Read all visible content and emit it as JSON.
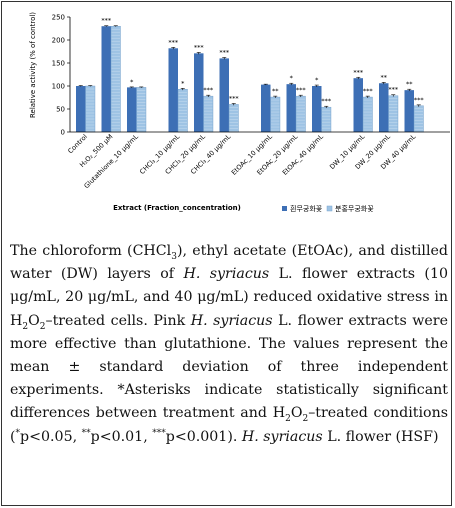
{
  "chart_data": {
    "type": "bar",
    "ylabel": "Relative activity (% of control)",
    "xlabel": "Extract (Fraction_concentration)",
    "ylim": [
      0,
      250
    ],
    "yticks": [
      0,
      50,
      100,
      150,
      200,
      250
    ],
    "grid": false,
    "legend": "bottom-right",
    "categories": [
      {
        "label": "Control",
        "group": 0
      },
      {
        "label": "H₂O₂_500 μM",
        "group": 0
      },
      {
        "label": "Glutathione_10 μg/mL",
        "group": 0
      },
      {
        "label": "CHCl₃_10 μg/mL",
        "group": 1
      },
      {
        "label": "CHCl₃_20 μg/mL",
        "group": 1
      },
      {
        "label": "CHCl₃_40 μg/mL",
        "group": 1
      },
      {
        "label": "EtOAc_10 μg/mL",
        "group": 2
      },
      {
        "label": "EtOAc_20 μg/mL",
        "group": 2
      },
      {
        "label": "EtOAc_40 μg/mL",
        "group": 2
      },
      {
        "label": "DW_10 μg/mL",
        "group": 3
      },
      {
        "label": "DW_20 μg/mL",
        "group": 3
      },
      {
        "label": "DW_40 μg/mL",
        "group": 3
      }
    ],
    "series": [
      {
        "name": "흰무궁화꽃",
        "values": [
          100,
          230,
          97,
          182,
          171,
          160,
          103,
          104,
          100,
          117,
          106,
          91
        ],
        "errors": [
          1,
          1,
          1,
          2,
          2,
          2,
          1,
          2,
          2,
          2,
          2,
          2
        ],
        "annotations": [
          "",
          "***",
          "*",
          "***",
          "***",
          "***",
          "",
          "*",
          "*",
          "***",
          "**",
          "**"
        ],
        "color": "#3d6fb5"
      },
      {
        "name": "분홍무궁화꽃",
        "values": [
          100,
          230,
          97,
          93,
          78,
          60,
          76,
          78,
          54,
          76,
          79,
          57
        ],
        "errors": [
          1,
          1,
          1,
          2,
          2,
          2,
          2,
          2,
          2,
          2,
          2,
          2
        ],
        "annotations": [
          "",
          "",
          "",
          "*",
          "***",
          "***",
          "**",
          "***",
          "***",
          "***",
          "***",
          "***"
        ],
        "color": "#9ec3e4"
      }
    ]
  },
  "caption": {
    "p1": "The chloroform (CHCl",
    "p1_sub": "3",
    "p2": "), ethyl acetate (EtOAc), and distilled water (DW) layers of ",
    "p3_i": "H. syriacus",
    "p4": " L. flower extracts (10 μg/mL, 20 μg/mL, and 40 μg/mL) reduced oxidative stress in H",
    "p4_sub1": "2",
    "p5": "O",
    "p5_sub2": "2",
    "p6": "–treated cells. Pink ",
    "p7_i": "H. syriacus",
    "p8": " L. flower extracts were more effective than glutathione. The values represent the mean ± standard deviation of three independent experiments. *Asterisks indicate statistically significant differences between treatment and H",
    "p8_sub1": "2",
    "p9": "O",
    "p9_sub2": "2",
    "p10": "–treated conditions (",
    "p10_sup1": "*",
    "p11": "p<0.05, ",
    "p11_sup2": "**",
    "p12": "p<0.01, ",
    "p12_sup3": "***",
    "p13": "p<0.001). ",
    "p14_i": "H. syriacus",
    "p15": " L. flower (HSF)"
  }
}
